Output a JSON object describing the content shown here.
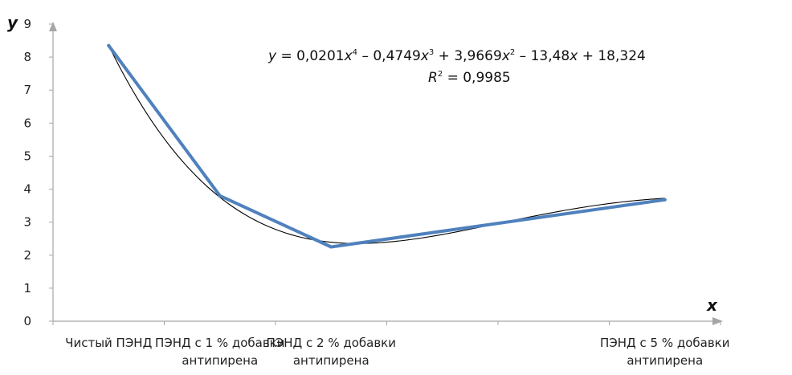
{
  "chart_data": {
    "type": "line",
    "xlabel": "x",
    "ylabel": "y",
    "ylim": [
      0,
      9
    ],
    "yticks": [
      "0",
      "1",
      "2",
      "3",
      "4",
      "5",
      "6",
      "7",
      "8",
      "9"
    ],
    "categories": [
      "Чистый ПЭНД",
      "ПЭНД с 1 % добавки антипирена",
      "ПЭНД с 2 % добавки антипирена",
      "",
      "",
      "ПЭНД с 5 % добавки антипирена"
    ],
    "category_lines": [
      [
        "Чистый ПЭНД"
      ],
      [
        "ПЭНД с 1 % добавки",
        "антипирена"
      ],
      [
        "ПЭНД с 2 % добавки",
        "антипирена"
      ],
      [],
      [],
      [
        "ПЭНД с 5 % добавки",
        "антипирена"
      ]
    ],
    "series": [
      {
        "x": [
          1,
          2,
          3,
          6
        ],
        "values": [
          8.35,
          3.8,
          2.25,
          3.68
        ],
        "color": "#4f81bd"
      }
    ],
    "trendline": {
      "type": "polynomial",
      "order": 4,
      "coefficients": [
        0.0201,
        -0.4749,
        3.9669,
        -13.48,
        18.324
      ],
      "color": "#000000",
      "equation_parts": {
        "y_var": "y",
        "p1": " = 0,0201",
        "x4": "x",
        "e4": "4",
        "p2": " – 0,4749",
        "x3": "x",
        "e3": "3",
        "p3": " + 3,9669",
        "x2": "x",
        "e2": "2",
        "p4": " – 13,48",
        "x1": "x",
        "p5": " + 18,324",
        "r_var": "R",
        "r_exp": "2",
        "r_val": " = 0,9985"
      }
    },
    "grid": false,
    "legend": "none"
  }
}
